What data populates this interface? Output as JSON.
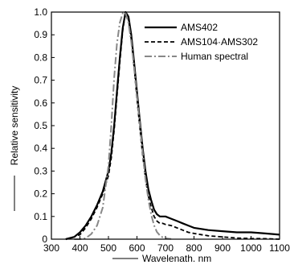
{
  "chart_data": {
    "type": "line",
    "xlabel": "Wavelenath. nm",
    "ylabel": "Relative sensitivity",
    "xlim": [
      300,
      1100
    ],
    "ylim": [
      0,
      1.0
    ],
    "xticks": [
      300,
      400,
      500,
      600,
      700,
      800,
      900,
      1000,
      1100
    ],
    "yticks": [
      0,
      0.1,
      0.2,
      0.3,
      0.4,
      0.5,
      0.6,
      0.7,
      0.8,
      0.9,
      1.0
    ],
    "ytick_labels": [
      "0",
      "0.1",
      "0.2",
      "0.3",
      "0.4",
      "0.5",
      "0.6",
      "0.7",
      "0.8",
      "0.9",
      "1.0"
    ],
    "grid": false,
    "legend": "top-right",
    "series": [
      {
        "name": "AMS402",
        "color": "#000000",
        "dash": "solid",
        "x": [
          350,
          380,
          400,
          420,
          440,
          460,
          480,
          500,
          510,
          520,
          530,
          540,
          550,
          560,
          570,
          580,
          590,
          600,
          610,
          620,
          630,
          640,
          650,
          660,
          670,
          680,
          690,
          700,
          720,
          740,
          760,
          780,
          800,
          850,
          900,
          950,
          1000,
          1050,
          1100
        ],
        "y": [
          0.0,
          0.01,
          0.03,
          0.06,
          0.1,
          0.15,
          0.21,
          0.3,
          0.38,
          0.5,
          0.65,
          0.8,
          0.93,
          1.0,
          0.98,
          0.9,
          0.78,
          0.65,
          0.52,
          0.4,
          0.3,
          0.22,
          0.17,
          0.13,
          0.11,
          0.1,
          0.1,
          0.1,
          0.09,
          0.08,
          0.07,
          0.06,
          0.05,
          0.04,
          0.035,
          0.03,
          0.03,
          0.025,
          0.02
        ]
      },
      {
        "name": "AMS104·AMS302",
        "color": "#000000",
        "dash": "dashed",
        "x": [
          350,
          380,
          400,
          420,
          440,
          460,
          480,
          500,
          510,
          520,
          530,
          540,
          550,
          560,
          570,
          580,
          590,
          600,
          610,
          620,
          630,
          640,
          650,
          660,
          670,
          680,
          690,
          700,
          720,
          740,
          760,
          780,
          800,
          850,
          900,
          950,
          1000,
          1050,
          1100
        ],
        "y": [
          0.0,
          0.01,
          0.02,
          0.05,
          0.09,
          0.14,
          0.2,
          0.28,
          0.36,
          0.48,
          0.63,
          0.78,
          0.92,
          1.0,
          0.97,
          0.88,
          0.76,
          0.62,
          0.49,
          0.37,
          0.27,
          0.19,
          0.14,
          0.1,
          0.08,
          0.07,
          0.07,
          0.065,
          0.06,
          0.05,
          0.04,
          0.03,
          0.025,
          0.015,
          0.01,
          0.005,
          0.003,
          0.002,
          0.0
        ]
      },
      {
        "name": "Human spectral",
        "color": "#888888",
        "dash": "dash-dot",
        "x": [
          380,
          400,
          420,
          440,
          460,
          480,
          500,
          510,
          520,
          530,
          540,
          550,
          555,
          560,
          570,
          580,
          590,
          600,
          610,
          620,
          630,
          640,
          650,
          660,
          670,
          680,
          690,
          700,
          710,
          720
        ],
        "y": [
          0.0,
          0.0,
          0.004,
          0.023,
          0.06,
          0.139,
          0.323,
          0.503,
          0.71,
          0.862,
          0.954,
          0.995,
          1.0,
          0.995,
          0.952,
          0.87,
          0.757,
          0.631,
          0.503,
          0.381,
          0.265,
          0.175,
          0.107,
          0.061,
          0.032,
          0.017,
          0.008,
          0.004,
          0.002,
          0.001
        ]
      }
    ]
  }
}
